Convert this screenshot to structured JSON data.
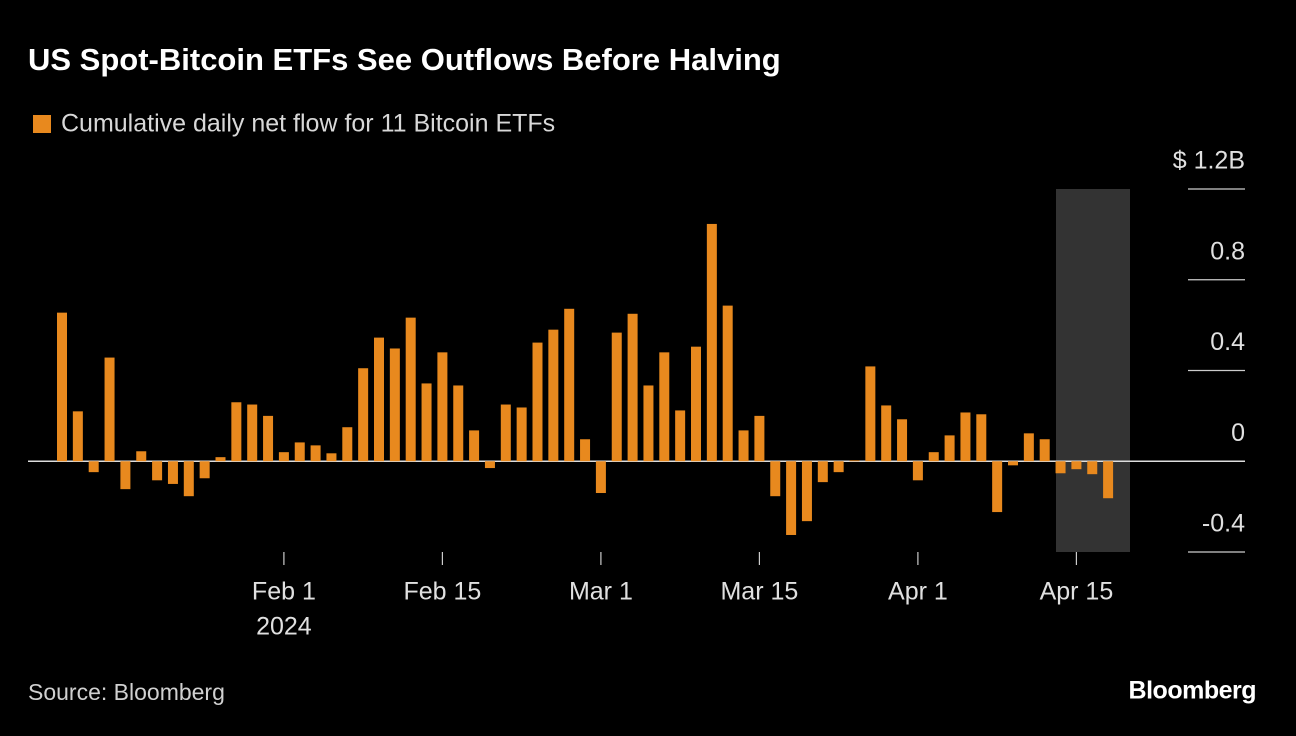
{
  "chart_data": {
    "type": "bar",
    "title": "US Spot-Bitcoin ETFs See Outflows Before Halving",
    "series": [
      {
        "name": "Cumulative daily net flow for 11 Bitcoin ETFs",
        "color": "#e8891e",
        "values": [
          0.655,
          0.22,
          -0.048,
          0.457,
          -0.123,
          0.044,
          -0.084,
          -0.1,
          -0.154,
          -0.075,
          0.018,
          0.26,
          0.25,
          0.2,
          0.04,
          0.083,
          0.07,
          0.035,
          0.15,
          0.41,
          0.545,
          0.497,
          0.633,
          0.343,
          0.48,
          0.334,
          0.136,
          -0.03,
          0.25,
          0.237,
          0.523,
          0.58,
          0.672,
          0.097,
          -0.14,
          0.567,
          0.65,
          0.334,
          0.48,
          0.224,
          0.505,
          1.046,
          0.686,
          0.136,
          0.2,
          -0.154,
          -0.325,
          -0.264,
          -0.092,
          -0.048,
          0.004,
          0.418,
          0.246,
          0.185,
          -0.084,
          0.04,
          0.114,
          0.215,
          0.207,
          -0.224,
          -0.018,
          0.123,
          0.097,
          -0.053,
          -0.035,
          -0.057,
          -0.163
        ]
      }
    ],
    "categories": [
      null,
      null,
      null,
      null,
      null,
      null,
      null,
      null,
      null,
      null,
      null,
      null,
      null,
      null,
      "Feb 1",
      null,
      null,
      null,
      null,
      null,
      null,
      null,
      null,
      null,
      "Feb 15",
      null,
      null,
      null,
      null,
      null,
      null,
      null,
      null,
      null,
      "Mar 1",
      null,
      null,
      null,
      null,
      null,
      null,
      null,
      null,
      null,
      "Mar 15",
      null,
      null,
      null,
      null,
      null,
      null,
      null,
      null,
      null,
      "Apr 1",
      null,
      null,
      null,
      null,
      null,
      null,
      null,
      null,
      null,
      "Apr 15",
      null,
      null
    ],
    "x_year_label": "2024",
    "ylim": [
      -0.4,
      1.2
    ],
    "yticks": [
      -0.4,
      0,
      0.4,
      0.8,
      {
        "value": 1.2,
        "label": "$ 1.2B"
      }
    ],
    "source": "Source: Bloomberg",
    "brand": "Bloomberg"
  }
}
